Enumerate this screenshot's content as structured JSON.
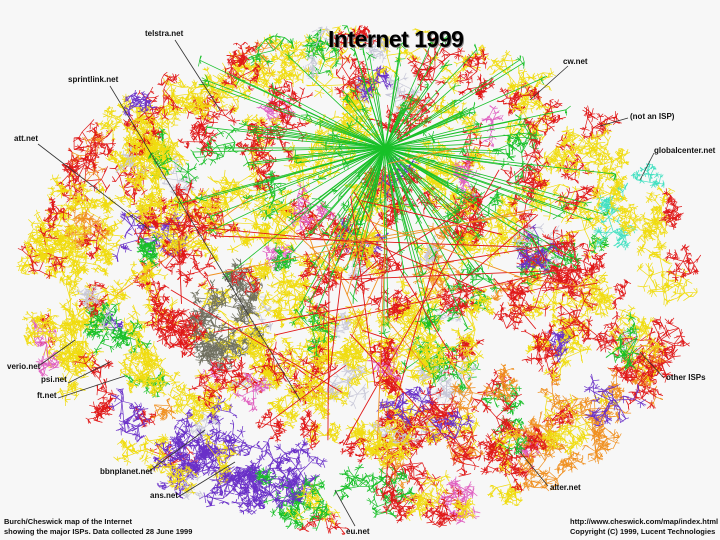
{
  "title": "Internet 1999",
  "isp_labels": {
    "telstra": "telstra.net",
    "sprintlink": "sprintlink.net",
    "att": "att.net",
    "verio": "verio.net",
    "psi": "psi.net",
    "ft": "ft.net",
    "bbnplanet": "bbnplanet.net",
    "ans": "ans.net",
    "eu": "eu.net",
    "alter": "alter.net",
    "other": "other ISPs",
    "globalcenter": "globalcenter.net",
    "not_isp": "(not an ISP)",
    "cw": "cw.net"
  },
  "footer_left": {
    "line1": "Burch/Cheswick map of the Internet",
    "line2": "showing the major ISPs.  Data collected 28 June 1999"
  },
  "footer_right": {
    "line1": "http://www.cheswick.com/map/index.html",
    "line2": "Copyright (C) 1999, Lucent Technologies"
  },
  "colors": {
    "yellow": "#f0dc10",
    "red": "#e01818",
    "green": "#18c028",
    "purple": "#6a30c8",
    "orange": "#f09020",
    "teal": "#40e0c0",
    "gray": "#707060",
    "pink": "#e060c0",
    "lightgray": "#c8c8d8"
  }
}
